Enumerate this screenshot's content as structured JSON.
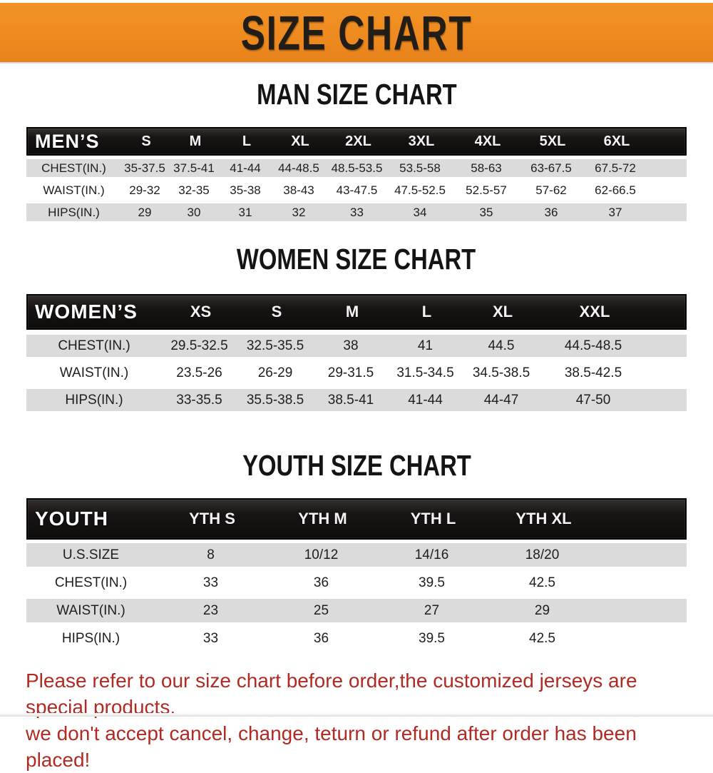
{
  "title": "SIZE CHART",
  "colors": {
    "banner_orange": "#EE8A1F",
    "bar_black": "#141210",
    "row_gray": "#DBDBDB",
    "footer_red": "#B12A24",
    "title_black": "#141414"
  },
  "sections": [
    {
      "id": "men",
      "title": "MAN SIZE CHART",
      "table": {
        "header_label": "MEN’S",
        "sizes": [
          "S",
          "M",
          "L",
          "XL",
          "2XL",
          "3XL",
          "4XL",
          "5XL",
          "6XL"
        ],
        "rows": [
          {
            "label": "CHEST(IN.)",
            "values": [
              "35-37.5",
              "37.5-41",
              "41-44",
              "44-48.5",
              "48.5-53.5",
              "53.5-58",
              "58-63",
              "63-67.5",
              "67.5-72"
            ]
          },
          {
            "label": "WAIST(IN.)",
            "values": [
              "29-32",
              "32-35",
              "35-38",
              "38-43",
              "43-47.5",
              "47.5-52.5",
              "52.5-57",
              "57-62",
              "62-66.5"
            ]
          },
          {
            "label": "HIPS(IN.)",
            "values": [
              "29",
              "30",
              "31",
              "32",
              "33",
              "34",
              "35",
              "36",
              "37"
            ]
          }
        ]
      }
    },
    {
      "id": "women",
      "title": "WOMEN SIZE CHART",
      "table": {
        "header_label": "WOMEN’S",
        "sizes": [
          "XS",
          "S",
          "M",
          "L",
          "XL",
          "XXL"
        ],
        "rows": [
          {
            "label": "CHEST(IN.)",
            "values": [
              "29.5-32.5",
              "32.5-35.5",
              "38",
              "41",
              "44.5",
              "44.5-48.5"
            ]
          },
          {
            "label": "WAIST(IN.)",
            "values": [
              "23.5-26",
              "26-29",
              "29-31.5",
              "31.5-34.5",
              "34.5-38.5",
              "38.5-42.5"
            ]
          },
          {
            "label": "HIPS(IN.)",
            "values": [
              "33-35.5",
              "35.5-38.5",
              "38.5-41",
              "41-44",
              "44-47",
              "47-50"
            ]
          }
        ]
      }
    },
    {
      "id": "youth",
      "title": "YOUTH SIZE CHART",
      "table": {
        "header_label": "YOUTH",
        "sizes": [
          "YTH S",
          "YTH M",
          "YTH L",
          "YTH XL"
        ],
        "rows": [
          {
            "label": "U.S.SIZE",
            "values": [
              "8",
              "10/12",
              "14/16",
              "18/20"
            ]
          },
          {
            "label": "CHEST(IN.)",
            "values": [
              "33",
              "36",
              "39.5",
              "42.5"
            ]
          },
          {
            "label": "WAIST(IN.)",
            "values": [
              "23",
              "25",
              "27",
              "29"
            ]
          },
          {
            "label": "HIPS(IN.)",
            "values": [
              "33",
              "36",
              "39.5",
              "42.5"
            ]
          }
        ]
      }
    }
  ],
  "footer": {
    "line1": "Please refer to our size chart before order,the customized jerseys are special products,",
    "line2": "we don't accept cancel, change, teturn or refund after order has been placed!"
  }
}
